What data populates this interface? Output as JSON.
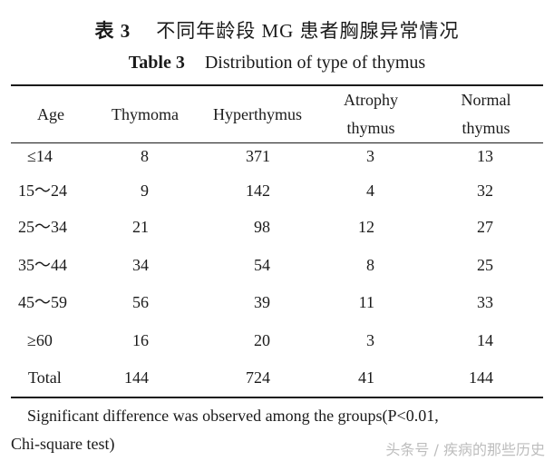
{
  "caption": {
    "cn_label": "表 3",
    "cn_text": "不同年龄段 MG 患者胸腺异常情况",
    "en_label": "Table 3",
    "en_text": "Distribution of type of thymus"
  },
  "table": {
    "headers": {
      "age": "Age",
      "thymoma": "Thymoma",
      "hyperthymus": "Hyperthymus",
      "atrophy_l1": "Atrophy",
      "atrophy_l2": "thymus",
      "normal_l1": "Normal",
      "normal_l2": "thymus"
    },
    "rows": [
      {
        "age": "≤14",
        "thymoma": "8",
        "hyperthymus": "371",
        "atrophy": "3",
        "normal": "13"
      },
      {
        "age": "15～24",
        "thymoma": "9",
        "hyperthymus": "142",
        "atrophy": "4",
        "normal": "32"
      },
      {
        "age": "25～34",
        "thymoma": "21",
        "hyperthymus": "98",
        "atrophy": "12",
        "normal": "27"
      },
      {
        "age": "35～44",
        "thymoma": "34",
        "hyperthymus": "54",
        "atrophy": "8",
        "normal": "25"
      },
      {
        "age": "45～59",
        "thymoma": "56",
        "hyperthymus": "39",
        "atrophy": "11",
        "normal": "33"
      },
      {
        "age": "≥60",
        "thymoma": "16",
        "hyperthymus": "20",
        "atrophy": "3",
        "normal": "14"
      },
      {
        "age": "Total",
        "thymoma": "144",
        "hyperthymus": "724",
        "atrophy": "41",
        "normal": "144"
      }
    ]
  },
  "footnote": {
    "line1": "Significant difference was observed among the groups(P<0.01,",
    "line2": "Chi-square test)"
  },
  "watermark": "头条号 / 疾病的那些历史"
}
